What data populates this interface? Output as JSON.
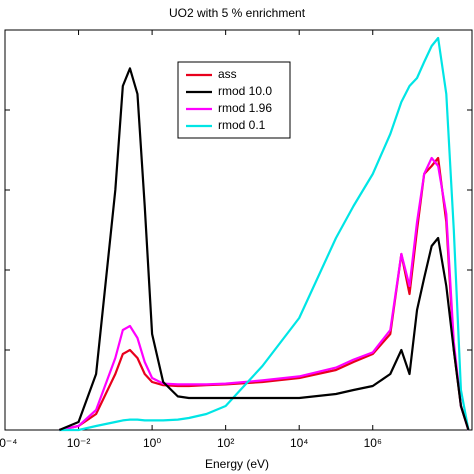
{
  "chart_data": {
    "type": "line",
    "title": "UO2 with 5 % enrichment",
    "x_label": "Energy (eV)",
    "x": [
      0.003,
      0.01,
      0.03,
      0.1,
      0.16,
      0.25,
      0.4,
      0.63,
      1,
      2,
      5,
      10,
      30,
      100,
      1000,
      10000,
      100000,
      300000,
      1000000,
      3000000,
      6000000,
      10000000,
      16000000,
      25000000,
      40000000,
      60000000,
      100000000,
      160000000,
      250000000,
      400000000
    ],
    "series": [
      {
        "name": "ass",
        "color": "#e8001c",
        "values": [
          0,
          0.05,
          0.2,
          0.7,
          0.95,
          1.0,
          0.9,
          0.7,
          0.6,
          0.56,
          0.55,
          0.55,
          0.56,
          0.57,
          0.6,
          0.65,
          0.75,
          0.85,
          0.95,
          1.2,
          2.2,
          1.7,
          2.5,
          3.2,
          3.3,
          3.4,
          2.6,
          1.0,
          0.3,
          0
        ]
      },
      {
        "name": "rmod 10.0",
        "color": "#000000",
        "values": [
          0,
          0.1,
          0.7,
          3,
          4.3,
          4.52,
          4.2,
          2.8,
          1.2,
          0.6,
          0.42,
          0.4,
          0.4,
          0.4,
          0.4,
          0.4,
          0.45,
          0.5,
          0.55,
          0.7,
          1.0,
          0.7,
          1.5,
          1.9,
          2.3,
          2.4,
          1.8,
          1.0,
          0.3,
          0
        ]
      },
      {
        "name": "rmod 1.96",
        "color": "#ff00ff",
        "values": [
          0,
          0.05,
          0.25,
          0.9,
          1.25,
          1.3,
          1.15,
          0.85,
          0.65,
          0.58,
          0.57,
          0.57,
          0.57,
          0.58,
          0.62,
          0.67,
          0.78,
          0.88,
          0.97,
          1.25,
          2.2,
          1.8,
          2.6,
          3.2,
          3.4,
          3.3,
          2.7,
          1.1,
          0.3,
          0
        ]
      },
      {
        "name": "rmod 0.1",
        "color": "#00e5e5",
        "values": [
          0,
          0,
          0.05,
          0.1,
          0.12,
          0.13,
          0.13,
          0.12,
          0.12,
          0.12,
          0.13,
          0.15,
          0.2,
          0.3,
          0.8,
          1.4,
          2.4,
          2.8,
          3.2,
          3.7,
          4.1,
          4.3,
          4.4,
          4.6,
          4.8,
          4.9,
          4.2,
          2.5,
          0.5,
          0
        ]
      }
    ],
    "x_log": true,
    "xlim": [
      0.0001,
      500000000
    ],
    "xticks": [
      {
        "value": 0.0001,
        "label": "10⁻⁴"
      },
      {
        "value": 0.01,
        "label": "10⁻²"
      },
      {
        "value": 1,
        "label": "10⁰"
      },
      {
        "value": 100,
        "label": "10²"
      },
      {
        "value": 10000,
        "label": "10⁴"
      },
      {
        "value": 1000000,
        "label": "10⁶"
      }
    ],
    "ylim": [
      0,
      5
    ],
    "yticks": [
      1,
      2,
      3,
      4
    ]
  }
}
